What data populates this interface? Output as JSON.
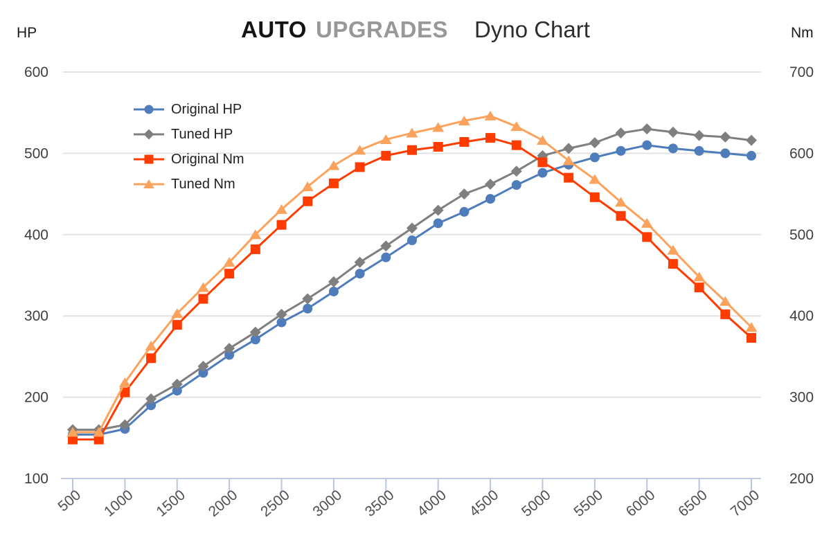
{
  "header": {
    "brand_bold": "AUTO",
    "brand_gray": "UPGRADES",
    "subtitle": "Dyno Chart"
  },
  "chart_data": {
    "type": "line",
    "title": "AUTO UPGRADES Dyno Chart",
    "grid": "horizontal",
    "legend_position": "top-left-inside",
    "left_axis": {
      "title": "HP",
      "range": [
        100,
        600
      ],
      "ticks": [
        100,
        200,
        300,
        400,
        500,
        600
      ]
    },
    "right_axis": {
      "title": "Nm",
      "range": [
        200,
        700
      ],
      "ticks": [
        200,
        300,
        400,
        500,
        600,
        700
      ]
    },
    "x_axis": {
      "range": [
        500,
        7000
      ],
      "ticks": [
        500,
        1000,
        1500,
        2000,
        2500,
        3000,
        3500,
        4000,
        4500,
        5000,
        5500,
        6000,
        6500,
        7000
      ]
    },
    "x_points": [
      500,
      750,
      1000,
      1250,
      1500,
      1750,
      2000,
      2250,
      2500,
      2750,
      3000,
      3250,
      3500,
      3750,
      4000,
      4250,
      4500,
      4750,
      5000,
      5250,
      5500,
      5750,
      6000,
      6250,
      6500,
      6750,
      7000
    ],
    "series": [
      {
        "name": "Original HP",
        "axis": "left",
        "marker": "circle",
        "color": "#4f7cba",
        "values": [
          154,
          154,
          161,
          190,
          208,
          230,
          252,
          271,
          292,
          309,
          330,
          352,
          372,
          393,
          414,
          428,
          444,
          461,
          476,
          486,
          495,
          503,
          510,
          506,
          503,
          500,
          497
        ]
      },
      {
        "name": "Tuned HP",
        "axis": "left",
        "marker": "diamond",
        "color": "#7f7f7f",
        "values": [
          160,
          160,
          166,
          198,
          216,
          238,
          260,
          280,
          302,
          321,
          342,
          366,
          386,
          408,
          430,
          450,
          462,
          478,
          497,
          506,
          513,
          525,
          530,
          526,
          522,
          520,
          516
        ]
      },
      {
        "name": "Original Nm",
        "axis": "right",
        "marker": "square",
        "color": "#fe3c00",
        "values": [
          248,
          248,
          306,
          348,
          389,
          421,
          452,
          482,
          512,
          541,
          563,
          583,
          597,
          604,
          608,
          614,
          619,
          610,
          589,
          570,
          546,
          523,
          497,
          464,
          435,
          402,
          373
        ]
      },
      {
        "name": "Tuned Nm",
        "axis": "right",
        "marker": "triangle",
        "color": "#fba25c",
        "values": [
          257,
          257,
          318,
          363,
          403,
          435,
          466,
          500,
          531,
          559,
          585,
          604,
          617,
          625,
          632,
          640,
          646,
          633,
          616,
          591,
          568,
          540,
          514,
          481,
          448,
          418,
          386
        ]
      }
    ],
    "colors": {
      "gridline": "#e2e2e2",
      "axis": "#b9c6e0",
      "tick_label": "#3f3f3f",
      "x_tick_label": "#4f4f4f"
    }
  }
}
